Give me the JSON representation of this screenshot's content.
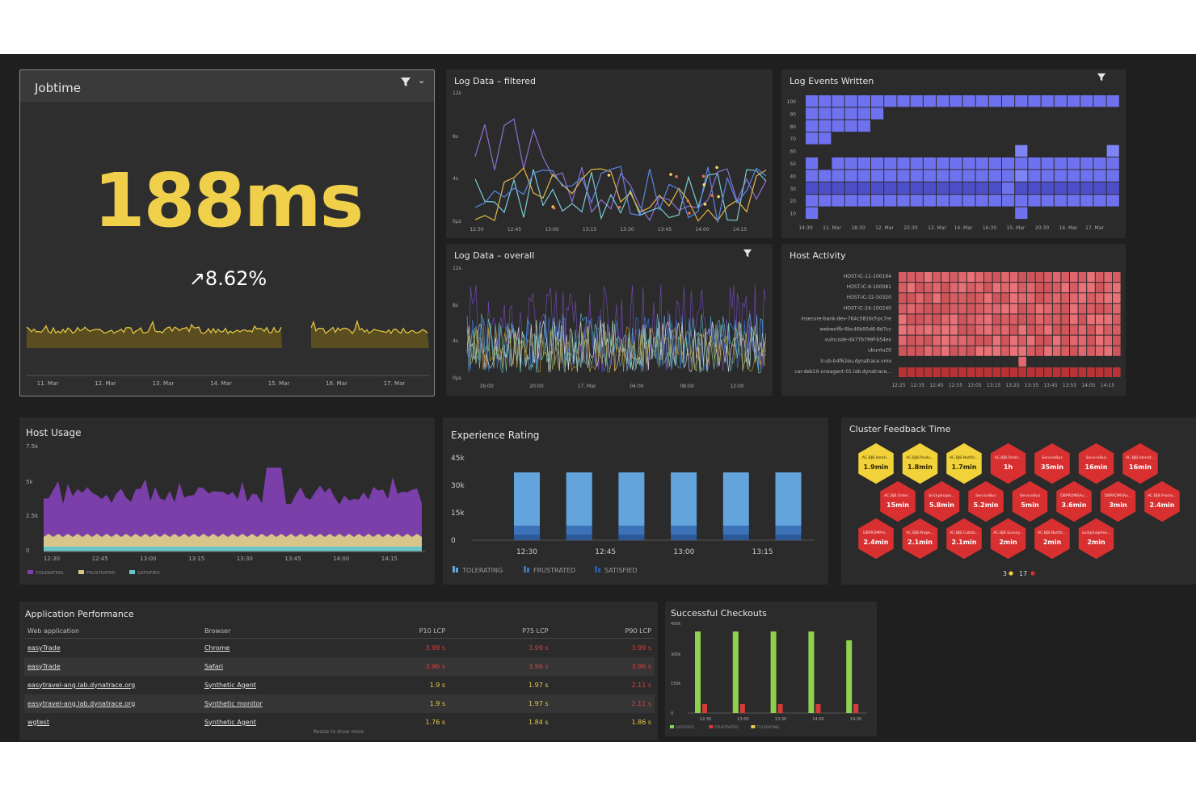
{
  "jobtime": {
    "title": "Jobtime",
    "value": "188ms",
    "change": "↗8.62%",
    "x_labels": [
      "11. Mar",
      "12. Mar",
      "13. Mar",
      "14. Mar",
      "15. Mar",
      "16. Mar",
      "17. Mar"
    ],
    "value_color": "#f0d04a"
  },
  "log_filtered": {
    "title": "Log Data – filtered",
    "y_labels": [
      "12s",
      "8s",
      "4s",
      "0µs"
    ],
    "x_labels": [
      "12:30",
      "12:45",
      "13:00",
      "13:15",
      "13:30",
      "13:45",
      "14:00",
      "14:15"
    ]
  },
  "log_overall": {
    "title": "Log Data – overall",
    "y_labels": [
      "12s",
      "8s",
      "4s",
      "0µs"
    ],
    "x_labels": [
      "16:00",
      "20:00",
      "17. Mar",
      "04:00",
      "08:00",
      "12:00"
    ]
  },
  "log_events": {
    "title": "Log Events Written",
    "y_labels": [
      "100",
      "90",
      "80",
      "70",
      "60",
      "50",
      "40",
      "30",
      "20",
      "10"
    ],
    "x_labels": [
      "14:30",
      "11. Mar",
      "18:30",
      "12. Mar",
      "22:30",
      "13. Mar",
      "14. Mar",
      "16:30",
      "15. Mar",
      "20:30",
      "16. Mar",
      "17. Mar"
    ]
  },
  "host_activity": {
    "title": "Host Activity",
    "hosts": [
      "HOST-IC-11-100164",
      "HOST-IC-9-100081",
      "HOST-IC-32-50320",
      "HOST-IC-24-100240",
      "insecure-bank-dev-764c5816cf-pc7re",
      "webwolfb-6bc46b95d6-8d7cc",
      "vulncode-d477b799f-b54ex",
      "ubuntu20",
      "lr-ub-b4f62eu.dynatrace.vmo",
      "car-deb10-oneagent-01.lab.dynatrace..."
    ],
    "x_labels": [
      "12:25",
      "12:35",
      "12:45",
      "12:55",
      "13:05",
      "13:15",
      "13:25",
      "13:35",
      "13:45",
      "13:55",
      "14:05",
      "14:15"
    ]
  },
  "host_usage": {
    "title": "Host Usage",
    "y_labels": [
      "7.5k",
      "5k",
      "2.5k",
      "0"
    ],
    "x_labels": [
      "12:30",
      "12:45",
      "13:00",
      "13:15",
      "13:30",
      "13:45",
      "14:00",
      "14:15"
    ],
    "legend": [
      "TOLERATING",
      "FRUSTRATED",
      "SATISFIED"
    ]
  },
  "experience_rating": {
    "title": "Experience Rating",
    "y_labels": [
      "45k",
      "30k",
      "15k",
      "0"
    ],
    "x_labels": [
      "12:30",
      "12:45",
      "13:00",
      "13:15"
    ],
    "legend": [
      "TOLERATING",
      "FRUSTRATED",
      "SATISFIED"
    ]
  },
  "cluster_feedback": {
    "title": "Cluster Feedback Time",
    "hexes": [
      {
        "name": "AC.BJB.Identi...",
        "value": "1.9min",
        "status": "yellow"
      },
      {
        "name": "AC.BJB.Produ...",
        "value": "1.8min",
        "status": "yellow"
      },
      {
        "name": "AC.BJB.Notific...",
        "value": "1.7min",
        "status": "yellow"
      },
      {
        "name": "AC.BJB.Order...",
        "value": "1h",
        "status": "red"
      },
      {
        "name": "ServiceBus",
        "value": "35min",
        "status": "red"
      },
      {
        "name": "ServiceBus",
        "value": "16min",
        "status": "red"
      },
      {
        "name": "AC.BJB.Identit...",
        "value": "16min",
        "status": "red"
      },
      {
        "name": "AC.BJB.Order...",
        "value": "15min",
        "status": "red"
      },
      {
        "name": "brickphsqax...",
        "value": "5.8min",
        "status": "red"
      },
      {
        "name": "ServiceBus",
        "value": "5.2min",
        "status": "red"
      },
      {
        "name": "ServiceBus",
        "value": "5min",
        "status": "red"
      },
      {
        "name": "DBPROMSAu...",
        "value": "3.6min",
        "status": "red"
      },
      {
        "name": "DBPROMSAu...",
        "value": "3min",
        "status": "red"
      },
      {
        "name": "AC.BJB.Promo...",
        "value": "2.4min",
        "status": "red"
      },
      {
        "name": "DBPROMPro...",
        "value": "2.4min",
        "status": "red"
      },
      {
        "name": "AC.BJB.Prope...",
        "value": "2.1min",
        "status": "red"
      },
      {
        "name": "AC.BJB.Catalo...",
        "value": "2.1min",
        "status": "red"
      },
      {
        "name": "AC.BJB.Survey...",
        "value": "2min",
        "status": "red"
      },
      {
        "name": "AC.BJB.Notific...",
        "value": "2min",
        "status": "red"
      },
      {
        "name": "audiphalphea...",
        "value": "2min",
        "status": "red"
      }
    ],
    "summary_yellow": "3",
    "summary_red": "17",
    "colors": {
      "yellow": "#f2d23a",
      "red": "#d83030"
    }
  },
  "app_performance": {
    "title": "Application Performance",
    "columns": [
      "Web application",
      "Browser",
      "P10 LCP",
      "P75 LCP",
      "P90 LCP"
    ],
    "rows": [
      {
        "app": "easyTrade",
        "browser": "Chrome",
        "p10": "3.99 s",
        "p75": "3.99 s",
        "p90": "3.99 s",
        "level": "red"
      },
      {
        "app": "easyTrade",
        "browser": "Safari",
        "p10": "3.96 s",
        "p75": "3.96 s",
        "p90": "3.96 s",
        "level": "red"
      },
      {
        "app": "easytravel-ang.lab.dynatrace.org",
        "browser": "Synthetic Agent",
        "p10": "1.9 s",
        "p75": "1.97 s",
        "p90": "2.11 s",
        "level": "mixed"
      },
      {
        "app": "easytravel-ang.lab.dynatrace.org",
        "browser": "Synthetic monitor",
        "p10": "1.9 s",
        "p75": "1.97 s",
        "p90": "2.11 s",
        "level": "mixed"
      },
      {
        "app": "wgtest",
        "browser": "Synthetic Agent",
        "p10": "1.76 s",
        "p75": "1.84 s",
        "p90": "1.86 s",
        "level": "yellow"
      }
    ],
    "footer": "Resize to show more"
  },
  "checkouts": {
    "title": "Successful Checkouts",
    "y_labels": [
      "450k",
      "300k",
      "150k",
      "0"
    ],
    "x_labels": [
      "12:30",
      "13:00",
      "13:30",
      "14:00",
      "14:30"
    ],
    "legend": [
      "SATISFIED",
      "FRUSTRATED",
      "TOLERATING"
    ]
  }
}
